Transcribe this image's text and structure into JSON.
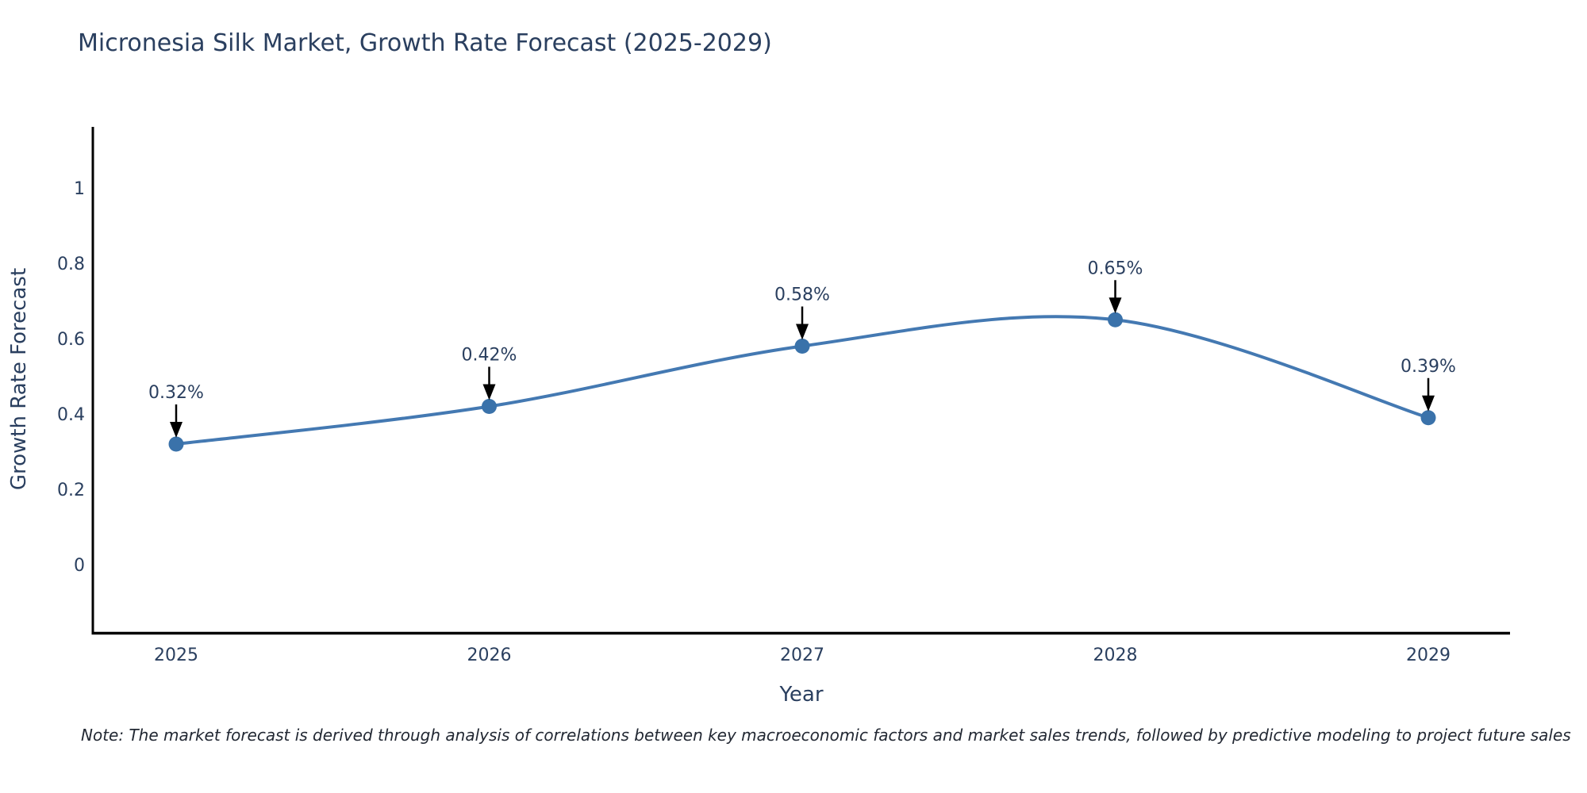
{
  "note": "Note: The market forecast is derived through analysis of correlations between key macroeconomic factors and market sales trends, followed by predictive modeling to project future sales",
  "chart_data": {
    "type": "line",
    "line_shape": "spline",
    "title": "Micronesia Silk Market, Growth Rate Forecast (2025-2029)",
    "xlabel": "Year",
    "ylabel": "Growth Rate Forecast",
    "categories": [
      "2025",
      "2026",
      "2027",
      "2028",
      "2029"
    ],
    "values": [
      0.32,
      0.42,
      0.58,
      0.65,
      0.39
    ],
    "point_labels": [
      "0.32%",
      "0.42%",
      "0.58%",
      "0.65%",
      "0.39%"
    ],
    "yticks": [
      0,
      0.2,
      0.4,
      0.6,
      0.8,
      1
    ],
    "ylim": [
      -0.19,
      1.16
    ],
    "grid": false,
    "legend": false,
    "colors": {
      "line": "#4479b2",
      "marker": "#3a72aa",
      "axis": "#000000",
      "text": "#2a3f5f",
      "arrow": "#000000"
    }
  }
}
